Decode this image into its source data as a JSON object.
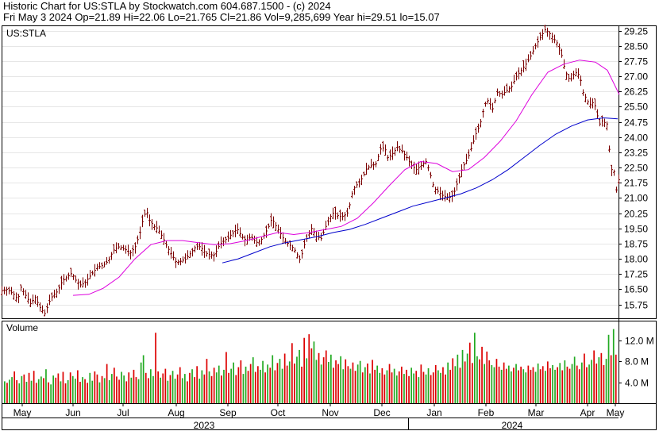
{
  "header": {
    "line1": "Historic Chart for US:STLA by Stockwatch.com 604.687.1500 - (c) 2024",
    "line2": "Fri May  3 2024  Op=21.89  Hi=22.06  Lo=21.765  Cl=21.86  Vol=9,285,699  Year hi=29.51  lo=15.07"
  },
  "colors": {
    "price_bar": "#7a0000",
    "ma_short": "#dd00dd",
    "ma_long": "#0000cc",
    "vol_up": "#22aa22",
    "vol_down": "#dd0000",
    "grid": "#e6e6e6",
    "frame": "#000000"
  },
  "chart_data": [
    {
      "type": "line",
      "title": "US:STLA",
      "ylim": [
        15.07,
        29.51
      ],
      "y_ticks": [
        "29.25",
        "28.50",
        "27.75",
        "27.00",
        "26.25",
        "25.50",
        "24.75",
        "24.00",
        "23.25",
        "22.50",
        "21.75",
        "21.00",
        "20.25",
        "19.50",
        "18.75",
        "18.00",
        "17.25",
        "16.50",
        "15.75"
      ],
      "x_tick_labels": [
        "May",
        "Jun",
        "Jul",
        "Aug",
        "Sep",
        "Oct",
        "Nov",
        "Dec",
        "Jan",
        "Feb",
        "Mar",
        "Apr",
        "May"
      ],
      "year_labels": [
        "2023",
        "2024"
      ],
      "anchors": [
        {
          "x": 0,
          "y": 16.4
        },
        {
          "x": 8,
          "y": 16.5
        },
        {
          "x": 16,
          "y": 16.3
        },
        {
          "x": 22,
          "y": 16.0
        },
        {
          "x": 26,
          "y": 16.6
        },
        {
          "x": 32,
          "y": 16.2
        },
        {
          "x": 38,
          "y": 15.8
        },
        {
          "x": 44,
          "y": 16.1
        },
        {
          "x": 50,
          "y": 15.6
        },
        {
          "x": 56,
          "y": 15.3
        },
        {
          "x": 62,
          "y": 15.9
        },
        {
          "x": 66,
          "y": 16.2
        },
        {
          "x": 72,
          "y": 16.4
        },
        {
          "x": 78,
          "y": 16.9
        },
        {
          "x": 84,
          "y": 17.1
        },
        {
          "x": 90,
          "y": 17.3
        },
        {
          "x": 94,
          "y": 17.0
        },
        {
          "x": 100,
          "y": 16.7
        },
        {
          "x": 106,
          "y": 16.8
        },
        {
          "x": 112,
          "y": 17.1
        },
        {
          "x": 118,
          "y": 17.4
        },
        {
          "x": 124,
          "y": 17.6
        },
        {
          "x": 130,
          "y": 17.7
        },
        {
          "x": 136,
          "y": 17.9
        },
        {
          "x": 142,
          "y": 18.4
        },
        {
          "x": 148,
          "y": 18.6
        },
        {
          "x": 156,
          "y": 18.5
        },
        {
          "x": 164,
          "y": 18.3
        },
        {
          "x": 170,
          "y": 18.6
        },
        {
          "x": 176,
          "y": 19.3
        },
        {
          "x": 180,
          "y": 20.0
        },
        {
          "x": 184,
          "y": 20.4
        },
        {
          "x": 188,
          "y": 19.9
        },
        {
          "x": 194,
          "y": 19.6
        },
        {
          "x": 198,
          "y": 19.5
        },
        {
          "x": 204,
          "y": 19.1
        },
        {
          "x": 210,
          "y": 18.6
        },
        {
          "x": 216,
          "y": 18.2
        },
        {
          "x": 222,
          "y": 17.8
        },
        {
          "x": 228,
          "y": 17.9
        },
        {
          "x": 234,
          "y": 18.0
        },
        {
          "x": 240,
          "y": 18.3
        },
        {
          "x": 246,
          "y": 18.6
        },
        {
          "x": 252,
          "y": 18.6
        },
        {
          "x": 258,
          "y": 18.3
        },
        {
          "x": 264,
          "y": 18.2
        },
        {
          "x": 270,
          "y": 18.2
        },
        {
          "x": 276,
          "y": 18.7
        },
        {
          "x": 282,
          "y": 18.9
        },
        {
          "x": 288,
          "y": 19.1
        },
        {
          "x": 294,
          "y": 19.3
        },
        {
          "x": 298,
          "y": 19.5
        },
        {
          "x": 304,
          "y": 19.1
        },
        {
          "x": 310,
          "y": 18.9
        },
        {
          "x": 316,
          "y": 19.1
        },
        {
          "x": 322,
          "y": 18.8
        },
        {
          "x": 328,
          "y": 18.9
        },
        {
          "x": 334,
          "y": 19.3
        },
        {
          "x": 338,
          "y": 19.6
        },
        {
          "x": 342,
          "y": 20.0
        },
        {
          "x": 346,
          "y": 19.7
        },
        {
          "x": 352,
          "y": 19.3
        },
        {
          "x": 358,
          "y": 18.9
        },
        {
          "x": 364,
          "y": 18.7
        },
        {
          "x": 370,
          "y": 18.5
        },
        {
          "x": 374,
          "y": 18.2
        },
        {
          "x": 378,
          "y": 17.9
        },
        {
          "x": 382,
          "y": 18.6
        },
        {
          "x": 386,
          "y": 19.0
        },
        {
          "x": 392,
          "y": 19.5
        },
        {
          "x": 398,
          "y": 19.1
        },
        {
          "x": 404,
          "y": 19.0
        },
        {
          "x": 410,
          "y": 19.6
        },
        {
          "x": 416,
          "y": 20.1
        },
        {
          "x": 420,
          "y": 20.3
        },
        {
          "x": 426,
          "y": 20.1
        },
        {
          "x": 432,
          "y": 20.1
        },
        {
          "x": 438,
          "y": 20.3
        },
        {
          "x": 444,
          "y": 21.4
        },
        {
          "x": 450,
          "y": 21.7
        },
        {
          "x": 456,
          "y": 22.0
        },
        {
          "x": 462,
          "y": 22.5
        },
        {
          "x": 468,
          "y": 22.6
        },
        {
          "x": 474,
          "y": 22.7
        },
        {
          "x": 478,
          "y": 23.4
        },
        {
          "x": 484,
          "y": 23.5
        },
        {
          "x": 488,
          "y": 23.0
        },
        {
          "x": 494,
          "y": 23.2
        },
        {
          "x": 500,
          "y": 23.5
        },
        {
          "x": 506,
          "y": 23.3
        },
        {
          "x": 512,
          "y": 23.0
        },
        {
          "x": 518,
          "y": 22.6
        },
        {
          "x": 524,
          "y": 22.4
        },
        {
          "x": 530,
          "y": 22.6
        },
        {
          "x": 536,
          "y": 22.8
        },
        {
          "x": 540,
          "y": 22.4
        },
        {
          "x": 546,
          "y": 21.5
        },
        {
          "x": 552,
          "y": 21.3
        },
        {
          "x": 558,
          "y": 21.1
        },
        {
          "x": 564,
          "y": 21.0
        },
        {
          "x": 570,
          "y": 21.1
        },
        {
          "x": 576,
          "y": 21.8
        },
        {
          "x": 582,
          "y": 22.5
        },
        {
          "x": 588,
          "y": 22.9
        },
        {
          "x": 592,
          "y": 23.3
        },
        {
          "x": 596,
          "y": 23.8
        },
        {
          "x": 600,
          "y": 24.3
        },
        {
          "x": 604,
          "y": 24.6
        },
        {
          "x": 610,
          "y": 25.6
        },
        {
          "x": 614,
          "y": 25.8
        },
        {
          "x": 620,
          "y": 25.4
        },
        {
          "x": 626,
          "y": 26.2
        },
        {
          "x": 632,
          "y": 26.1
        },
        {
          "x": 638,
          "y": 26.3
        },
        {
          "x": 644,
          "y": 26.5
        },
        {
          "x": 650,
          "y": 27.0
        },
        {
          "x": 656,
          "y": 27.3
        },
        {
          "x": 662,
          "y": 27.6
        },
        {
          "x": 668,
          "y": 28.0
        },
        {
          "x": 674,
          "y": 28.5
        },
        {
          "x": 680,
          "y": 28.9
        },
        {
          "x": 686,
          "y": 29.3
        },
        {
          "x": 690,
          "y": 29.2
        },
        {
          "x": 696,
          "y": 28.9
        },
        {
          "x": 702,
          "y": 28.6
        },
        {
          "x": 706,
          "y": 28.2
        },
        {
          "x": 710,
          "y": 27.5
        },
        {
          "x": 714,
          "y": 27.0
        },
        {
          "x": 718,
          "y": 26.8
        },
        {
          "x": 722,
          "y": 27.1
        },
        {
          "x": 726,
          "y": 27.2
        },
        {
          "x": 730,
          "y": 27.0
        },
        {
          "x": 734,
          "y": 26.2
        },
        {
          "x": 738,
          "y": 25.9
        },
        {
          "x": 742,
          "y": 25.6
        },
        {
          "x": 746,
          "y": 25.7
        },
        {
          "x": 750,
          "y": 25.5
        },
        {
          "x": 754,
          "y": 24.6
        },
        {
          "x": 758,
          "y": 24.8
        },
        {
          "x": 762,
          "y": 24.7
        },
        {
          "x": 766,
          "y": 24.6
        },
        {
          "x": 768,
          "y": 22.2
        },
        {
          "x": 772,
          "y": 22.6
        },
        {
          "x": 776,
          "y": 21.4
        },
        {
          "x": 779,
          "y": 21.9
        }
      ],
      "ma_short": [
        {
          "x": 92,
          "y": 16.2
        },
        {
          "x": 112,
          "y": 16.25
        },
        {
          "x": 130,
          "y": 16.55
        },
        {
          "x": 150,
          "y": 17.1
        },
        {
          "x": 170,
          "y": 18.0
        },
        {
          "x": 190,
          "y": 18.7
        },
        {
          "x": 210,
          "y": 18.9
        },
        {
          "x": 230,
          "y": 18.9
        },
        {
          "x": 250,
          "y": 18.8
        },
        {
          "x": 270,
          "y": 18.7
        },
        {
          "x": 290,
          "y": 18.75
        },
        {
          "x": 310,
          "y": 18.9
        },
        {
          "x": 330,
          "y": 19.1
        },
        {
          "x": 350,
          "y": 19.3
        },
        {
          "x": 370,
          "y": 19.2
        },
        {
          "x": 390,
          "y": 19.3
        },
        {
          "x": 410,
          "y": 19.45
        },
        {
          "x": 430,
          "y": 19.6
        },
        {
          "x": 450,
          "y": 20.0
        },
        {
          "x": 470,
          "y": 20.75
        },
        {
          "x": 490,
          "y": 21.6
        },
        {
          "x": 510,
          "y": 22.4
        },
        {
          "x": 530,
          "y": 22.8
        },
        {
          "x": 550,
          "y": 22.7
        },
        {
          "x": 570,
          "y": 22.3
        },
        {
          "x": 590,
          "y": 22.4
        },
        {
          "x": 610,
          "y": 23.0
        },
        {
          "x": 630,
          "y": 23.8
        },
        {
          "x": 650,
          "y": 24.8
        },
        {
          "x": 670,
          "y": 26.1
        },
        {
          "x": 690,
          "y": 27.2
        },
        {
          "x": 710,
          "y": 27.6
        },
        {
          "x": 730,
          "y": 27.8
        },
        {
          "x": 750,
          "y": 27.7
        },
        {
          "x": 765,
          "y": 27.3
        },
        {
          "x": 780,
          "y": 26.1
        }
      ],
      "ma_long": [
        {
          "x": 280,
          "y": 17.8
        },
        {
          "x": 300,
          "y": 18.0
        },
        {
          "x": 320,
          "y": 18.3
        },
        {
          "x": 340,
          "y": 18.6
        },
        {
          "x": 360,
          "y": 18.8
        },
        {
          "x": 380,
          "y": 18.95
        },
        {
          "x": 400,
          "y": 19.1
        },
        {
          "x": 420,
          "y": 19.3
        },
        {
          "x": 440,
          "y": 19.45
        },
        {
          "x": 460,
          "y": 19.7
        },
        {
          "x": 480,
          "y": 20.0
        },
        {
          "x": 500,
          "y": 20.3
        },
        {
          "x": 520,
          "y": 20.6
        },
        {
          "x": 540,
          "y": 20.8
        },
        {
          "x": 560,
          "y": 21.0
        },
        {
          "x": 580,
          "y": 21.2
        },
        {
          "x": 600,
          "y": 21.5
        },
        {
          "x": 620,
          "y": 21.9
        },
        {
          "x": 640,
          "y": 22.4
        },
        {
          "x": 660,
          "y": 23.0
        },
        {
          "x": 680,
          "y": 23.6
        },
        {
          "x": 700,
          "y": 24.15
        },
        {
          "x": 720,
          "y": 24.55
        },
        {
          "x": 740,
          "y": 24.85
        },
        {
          "x": 760,
          "y": 24.95
        },
        {
          "x": 778,
          "y": 24.9
        }
      ]
    },
    {
      "type": "bar",
      "title": "Volume",
      "ylim": [
        0,
        15.5
      ],
      "y_ticks": [
        "12.0 M",
        "8.0 M",
        "4.0 M"
      ],
      "unit": "M",
      "volumes": [
        4.2,
        3.9,
        4.5,
        5.0,
        6.1,
        4.4,
        3.8,
        5.2,
        5.5,
        4.1,
        5.8,
        4.3,
        6.2,
        3.9,
        4.6,
        5.1,
        4.8,
        6.5,
        4.0,
        3.6,
        5.3,
        4.9,
        5.7,
        4.2,
        6.0,
        3.8,
        4.4,
        5.9,
        5.2,
        4.7,
        6.3,
        4.1,
        5.0,
        4.6,
        3.9,
        5.8,
        4.3,
        6.1,
        5.5,
        4.0,
        5.2,
        4.8,
        7.5,
        4.4,
        5.6,
        6.8,
        5.1,
        4.5,
        6.0,
        5.3,
        4.2,
        5.9,
        4.9,
        6.4,
        5.0,
        4.6,
        7.8,
        9.2,
        5.8,
        4.8,
        6.5,
        5.2,
        13.5,
        6.1,
        4.9,
        5.7,
        6.6,
        4.3,
        5.4,
        6.2,
        4.7,
        5.5,
        6.9,
        4.8,
        5.6,
        4.2,
        5.8,
        6.5,
        5.0,
        7.1,
        4.7,
        6.3,
        5.5,
        8.5,
        6.1,
        5.2,
        6.8,
        5.9,
        7.2,
        5.3,
        6.4,
        9.8,
        5.8,
        6.6,
        7.8,
        5.4,
        6.9,
        8.2,
        5.6,
        7.0,
        6.2,
        7.5,
        8.8,
        6.0,
        7.1,
        6.4,
        8.1,
        5.9,
        7.4,
        6.8,
        9.2,
        6.3,
        7.7,
        8.5,
        6.6,
        9.5,
        7.2,
        8.0,
        11.5,
        7.6,
        8.9,
        10.2,
        7.0,
        12.5,
        8.6,
        13.2,
        10.5,
        11.8,
        8.3,
        9.6,
        7.4,
        8.8,
        10.1,
        7.9,
        9.3,
        6.8,
        8.2,
        7.5,
        9.0,
        6.5,
        8.4,
        7.1,
        6.6,
        7.8,
        6.2,
        7.4,
        8.1,
        5.9,
        6.9,
        7.6,
        5.7,
        8.3,
        6.4,
        7.2,
        5.8,
        6.7,
        5.5,
        6.3,
        7.5,
        5.9,
        6.6,
        5.3,
        6.1,
        7.0,
        5.6,
        6.4,
        5.2,
        6.8,
        5.7,
        6.2,
        5.0,
        7.4,
        6.0,
        5.5,
        6.7,
        5.4,
        5.9,
        7.3,
        6.3,
        5.8,
        6.9,
        5.5,
        7.8,
        6.4,
        8.6,
        7.1,
        9.3,
        6.8,
        10.2,
        8.0,
        9.5,
        11.6,
        7.7,
        13.5,
        9.0,
        8.4,
        10.8,
        7.5,
        9.9,
        8.2,
        7.3,
        6.9,
        8.5,
        7.0,
        6.4,
        7.8,
        6.6,
        7.2,
        6.1,
        6.8,
        7.5,
        6.3,
        7.0,
        6.5,
        5.9,
        7.2,
        6.4,
        6.9,
        6.0,
        7.6,
        6.5,
        7.1,
        6.2,
        8.0,
        6.7,
        7.3,
        6.4,
        6.9,
        7.7,
        6.3,
        8.2,
        7.0,
        6.6,
        7.5,
        8.9,
        7.2,
        6.5,
        7.8,
        9.5,
        6.9,
        7.4,
        8.3,
        10.1,
        7.6,
        8.8,
        9.6,
        7.3,
        8.5,
        13.1,
        9.2,
        14.2,
        9.3
      ],
      "directions": "uduudduudududduududuuddudduduuddudduuddududuuddduuddudduuudduuddudduduudduuddudduuddudduududduuddduuddudduudududduuddudduuddudduududduuddduuddudduudududduuddudduuddudduududduuddduuddudduudududduuddudduuddudduududduuddduuddudduudududduuddudduuddudduudud"
    }
  ]
}
